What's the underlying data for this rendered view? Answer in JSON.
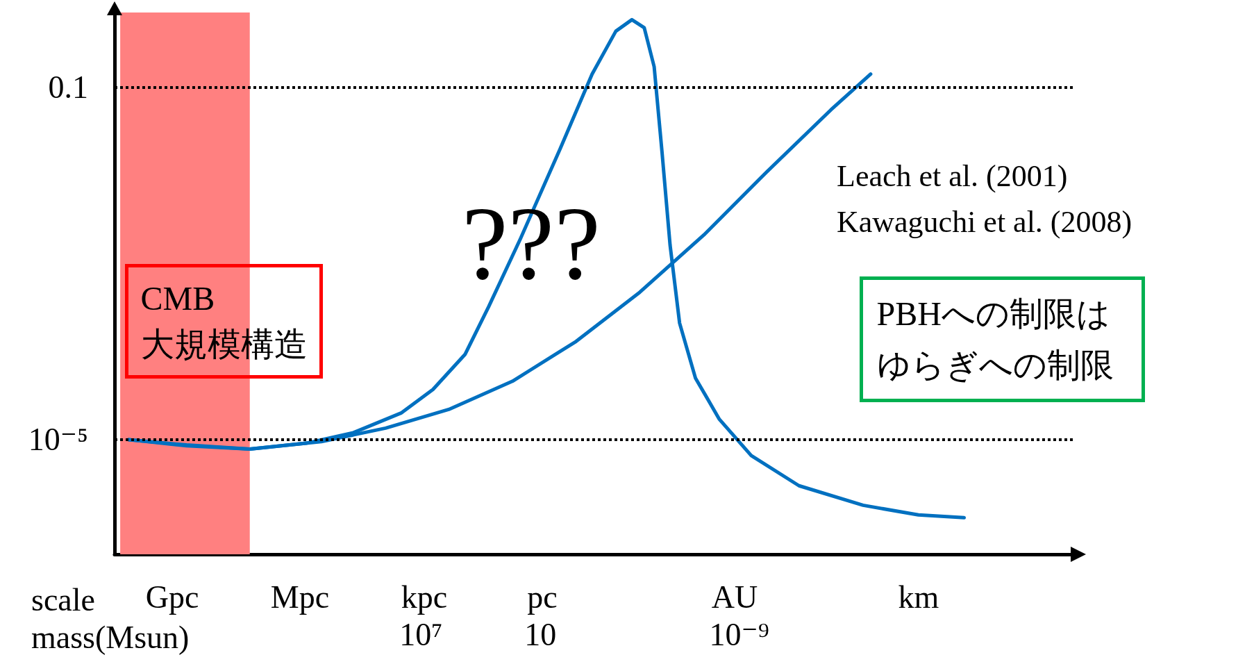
{
  "chart_data": {
    "type": "line",
    "log": "xy",
    "grid": false,
    "marker": "none",
    "line_style": "solid",
    "xlabel": "scale\nmass(Msun)",
    "xlim": [
      2.5e+22,
      1.6e-26
    ],
    "xticks": [
      {
        "value": 10000000.0,
        "label": "10⁷"
      },
      10,
      {
        "value": 1e-09,
        "label": "10⁻⁹"
      }
    ],
    "ylim": [
      5e-07,
      0.7
    ],
    "yticks": [
      {
        "value": 1e-05,
        "label": "10⁻⁵"
      },
      0.1
    ],
    "series": [
      {
        "color": "#0070c0",
        "x": [
          5e+21,
          6e+18,
          4000000000000000.0,
          6000000000000.0,
          25000000000.0,
          100000000.0,
          2500000.0,
          60000.0,
          4000.0,
          100,
          1,
          0.025,
          0.0016,
          0.00025,
          6e-05,
          1.9e-05,
          7.6e-06,
          3e-06,
          1e-06,
          1.6e-07,
          1e-08,
          2.5e-10,
          1e-12,
          6e-16,
          1e-18,
          5e-21
        ],
        "values": [
          1e-05,
          8.5e-06,
          7.8e-06,
          9.1e-06,
          1.2e-05,
          2e-05,
          3.7e-05,
          9.3e-05,
          0.00032,
          0.0019,
          0.02,
          0.14,
          0.43,
          0.58,
          0.47,
          0.17,
          0.018,
          0.0016,
          0.00021,
          5e-05,
          1.7e-05,
          6.6e-06,
          3e-06,
          1.8e-06,
          1.4e-06,
          1.3e-06
        ]
      },
      {
        "color": "#0070c0",
        "x": [
          5e+21,
          6e+18,
          4000000000000000.0,
          1000000000000.0,
          600000000.0,
          400000.0,
          250,
          0.16,
          0.0001,
          6e-08,
          4e-11,
          2.5e-14,
          2.5e-16
        ],
        "values": [
          1e-05,
          8.7e-06,
          7.8e-06,
          9.5e-06,
          1.35e-05,
          2.2e-05,
          4.6e-05,
          0.00013,
          0.00047,
          0.0021,
          0.011,
          0.055,
          0.14
        ]
      }
    ],
    "ref_lines": [
      {
        "axis": "y",
        "value": 0.1,
        "color": "#000000",
        "line_style": "dotted"
      },
      {
        "axis": "y",
        "value": 1e-05,
        "color": "#000000",
        "line_style": "dotted"
      }
    ],
    "bands": [
      {
        "axis": "x",
        "from": 1.3e+22,
        "to": 4000000000000000.0,
        "color": "#ff8080"
      }
    ],
    "annotations": [
      "CMB\n大規模構造",
      "???",
      "Leach et al. (2001)\nKawaguchi et al. (2008)",
      "PBHへの制限はゆらぎへの制限",
      "Gpc",
      "Mpc",
      "kpc",
      "pc",
      "AU",
      "km"
    ]
  }
}
